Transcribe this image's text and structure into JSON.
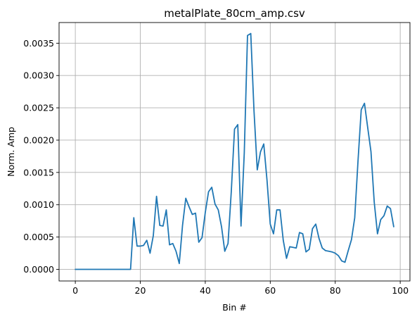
{
  "chart_data": {
    "type": "line",
    "title": "metalPlate_80cm_amp.csv",
    "xlabel": "Bin #",
    "ylabel": "Norm. Amp",
    "xlim": [
      -5.0,
      103.0
    ],
    "ylim": [
      -0.00018,
      0.00382
    ],
    "grid": true,
    "legend": "none",
    "color": "#1f77b4",
    "x_ticks": [
      0,
      20,
      40,
      60,
      80,
      100
    ],
    "x_tick_labels": [
      "0",
      "20",
      "40",
      "60",
      "80",
      "100"
    ],
    "y_ticks": [
      0.0,
      0.0005,
      0.001,
      0.0015,
      0.002,
      0.0025,
      0.003,
      0.0035
    ],
    "y_tick_labels": [
      "0.0000",
      "0.0005",
      "0.0010",
      "0.0015",
      "0.0020",
      "0.0025",
      "0.0030",
      "0.0035"
    ],
    "series": [
      {
        "x": [
          0,
          1,
          2,
          3,
          4,
          5,
          6,
          7,
          8,
          9,
          10,
          11,
          12,
          13,
          14,
          15,
          16,
          17,
          18,
          19,
          20,
          21,
          22,
          23,
          24,
          25,
          26,
          27,
          28,
          29,
          30,
          31,
          32,
          33,
          34,
          35,
          36,
          37,
          38,
          39,
          40,
          41,
          42,
          43,
          44,
          45,
          46,
          47,
          48,
          49,
          50,
          51,
          52,
          53,
          54,
          55,
          56,
          57,
          58,
          59,
          60,
          61,
          62,
          63,
          64,
          65,
          66,
          67,
          68,
          69,
          70,
          71,
          72,
          73,
          74,
          75,
          76,
          77,
          78,
          79,
          80,
          81,
          82,
          83,
          84,
          85,
          86,
          87,
          88,
          89,
          90,
          91,
          92,
          93,
          94,
          95,
          96,
          97,
          98
        ],
        "y": [
          0,
          0,
          0,
          0,
          0,
          0,
          0,
          0,
          0,
          0,
          0,
          0,
          0,
          0,
          0,
          0,
          0,
          0,
          0.0008,
          0.00036,
          0.00036,
          0.00037,
          0.00045,
          0.00025,
          0.00052,
          0.00113,
          0.00068,
          0.00067,
          0.00092,
          0.00038,
          0.0004,
          0.00028,
          9e-05,
          0.00068,
          0.0011,
          0.00097,
          0.00085,
          0.00087,
          0.00042,
          0.00049,
          0.00088,
          0.0012,
          0.00127,
          0.00101,
          0.00092,
          0.00066,
          0.00028,
          0.0004,
          0.0012,
          0.00217,
          0.00224,
          0.00067,
          0.0018,
          0.00362,
          0.00365,
          0.00245,
          0.00154,
          0.00182,
          0.00194,
          0.00138,
          0.0007,
          0.00055,
          0.00092,
          0.00092,
          0.00045,
          0.00017,
          0.00035,
          0.00034,
          0.00033,
          0.00057,
          0.00055,
          0.00027,
          0.00031,
          0.00063,
          0.0007,
          0.00048,
          0.00033,
          0.00029,
          0.00028,
          0.00027,
          0.00025,
          0.00021,
          0.00013,
          0.00011,
          0.00029,
          0.00046,
          0.0008,
          0.00167,
          0.00247,
          0.00257,
          0.00219,
          0.00182,
          0.00104,
          0.00055,
          0.00077,
          0.00083,
          0.00098,
          0.00094,
          0.00066
        ]
      }
    ]
  }
}
